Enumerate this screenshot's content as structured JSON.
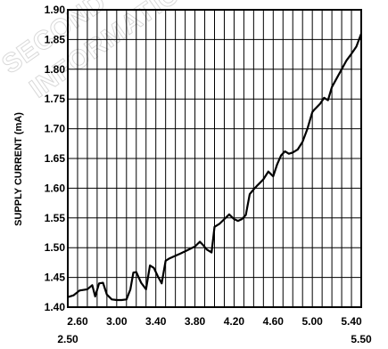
{
  "watermark": {
    "line1": "SECOND",
    "line2": "INFORMATION"
  },
  "chart_data": {
    "type": "line",
    "title": "",
    "xlabel": "",
    "ylabel": "SUPPLY CURRENT (mA)",
    "xlim": [
      2.5,
      5.5
    ],
    "ylim": [
      1.4,
      1.9
    ],
    "x_ticks": [
      2.6,
      3.0,
      3.4,
      3.8,
      4.2,
      4.6,
      5.0,
      5.4
    ],
    "x_tick_labels": [
      "2.60",
      "3.00",
      "3.40",
      "3.80",
      "4.20",
      "4.60",
      "5.00",
      "5.40"
    ],
    "x_end_labels": [
      "2.50",
      "5.50"
    ],
    "y_ticks": [
      1.4,
      1.45,
      1.5,
      1.55,
      1.6,
      1.65,
      1.7,
      1.75,
      1.8,
      1.85,
      1.9
    ],
    "y_tick_labels": [
      "1.40",
      "1.45",
      "1.50",
      "1.55",
      "1.60",
      "1.65",
      "1.70",
      "1.75",
      "1.80",
      "1.85",
      "1.90"
    ],
    "x_grid": [
      2.5,
      2.6,
      2.7,
      2.8,
      2.9,
      3.0,
      3.1,
      3.2,
      3.3,
      3.4,
      3.5,
      3.6,
      3.7,
      3.8,
      3.9,
      4.0,
      4.1,
      4.2,
      4.3,
      4.4,
      4.5,
      4.6,
      4.7,
      4.8,
      4.9,
      5.0,
      5.1,
      5.2,
      5.3,
      5.4,
      5.5
    ],
    "grid": true,
    "series": [
      {
        "x": [
          2.5,
          2.56,
          2.62,
          2.7,
          2.75,
          2.78,
          2.82,
          2.86,
          2.9,
          2.95,
          3.0,
          3.05,
          3.1,
          3.14,
          3.17,
          3.2,
          3.25,
          3.3,
          3.34,
          3.38,
          3.42,
          3.46,
          3.5,
          3.54,
          3.58,
          3.65,
          3.7,
          3.8,
          3.85,
          3.88,
          3.92,
          3.97,
          4.0,
          4.05,
          4.1,
          4.15,
          4.2,
          4.24,
          4.28,
          4.32,
          4.36,
          4.4,
          4.44,
          4.5,
          4.55,
          4.6,
          4.64,
          4.68,
          4.72,
          4.76,
          4.8,
          4.85,
          4.9,
          4.95,
          5.0,
          5.02,
          5.08,
          5.12,
          5.16,
          5.2,
          5.25,
          5.3,
          5.35,
          5.4,
          5.45,
          5.5
        ],
        "y": [
          1.417,
          1.42,
          1.428,
          1.43,
          1.437,
          1.418,
          1.44,
          1.441,
          1.421,
          1.413,
          1.412,
          1.412,
          1.413,
          1.43,
          1.458,
          1.459,
          1.441,
          1.43,
          1.47,
          1.466,
          1.452,
          1.44,
          1.478,
          1.482,
          1.485,
          1.49,
          1.494,
          1.502,
          1.51,
          1.505,
          1.497,
          1.492,
          1.535,
          1.54,
          1.548,
          1.556,
          1.548,
          1.545,
          1.548,
          1.555,
          1.59,
          1.598,
          1.605,
          1.615,
          1.628,
          1.62,
          1.64,
          1.655,
          1.662,
          1.658,
          1.66,
          1.665,
          1.678,
          1.7,
          1.728,
          1.732,
          1.742,
          1.752,
          1.748,
          1.77,
          1.785,
          1.8,
          1.815,
          1.826,
          1.838,
          1.86
        ]
      }
    ]
  }
}
